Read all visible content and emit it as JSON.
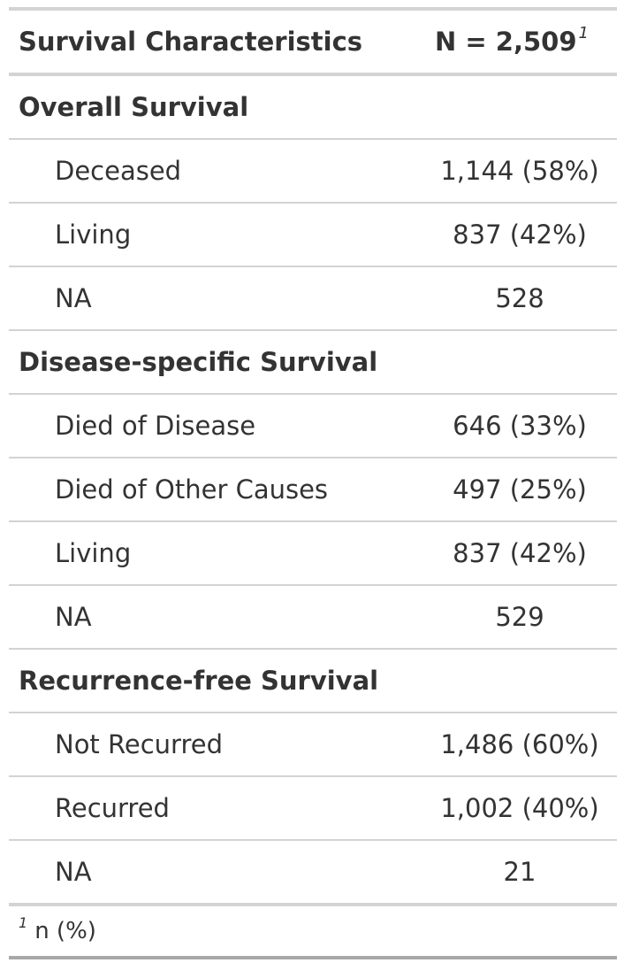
{
  "header": {
    "label": "Survival Characteristics",
    "value": "N = 2,509",
    "footnote_marker": "1"
  },
  "rows": [
    {
      "type": "group",
      "label": "Overall Survival",
      "value": ""
    },
    {
      "type": "sub",
      "label": "Deceased",
      "value": "1,144 (58%)"
    },
    {
      "type": "sub",
      "label": "Living",
      "value": "837 (42%)"
    },
    {
      "type": "sub",
      "label": "NA",
      "value": "528"
    },
    {
      "type": "group",
      "label": "Disease-specific Survival",
      "value": ""
    },
    {
      "type": "sub",
      "label": "Died of Disease",
      "value": "646 (33%)"
    },
    {
      "type": "sub",
      "label": "Died of Other Causes",
      "value": "497 (25%)"
    },
    {
      "type": "sub",
      "label": "Living",
      "value": "837 (42%)"
    },
    {
      "type": "sub",
      "label": "NA",
      "value": "529"
    },
    {
      "type": "group",
      "label": "Recurrence-free Survival",
      "value": ""
    },
    {
      "type": "sub",
      "label": "Not Recurred",
      "value": "1,486 (60%)"
    },
    {
      "type": "sub",
      "label": "Recurred",
      "value": "1,002 (40%)"
    },
    {
      "type": "sub",
      "label": "NA",
      "value": "21"
    }
  ],
  "footnote": {
    "marker": "1",
    "text": "n (%)"
  }
}
